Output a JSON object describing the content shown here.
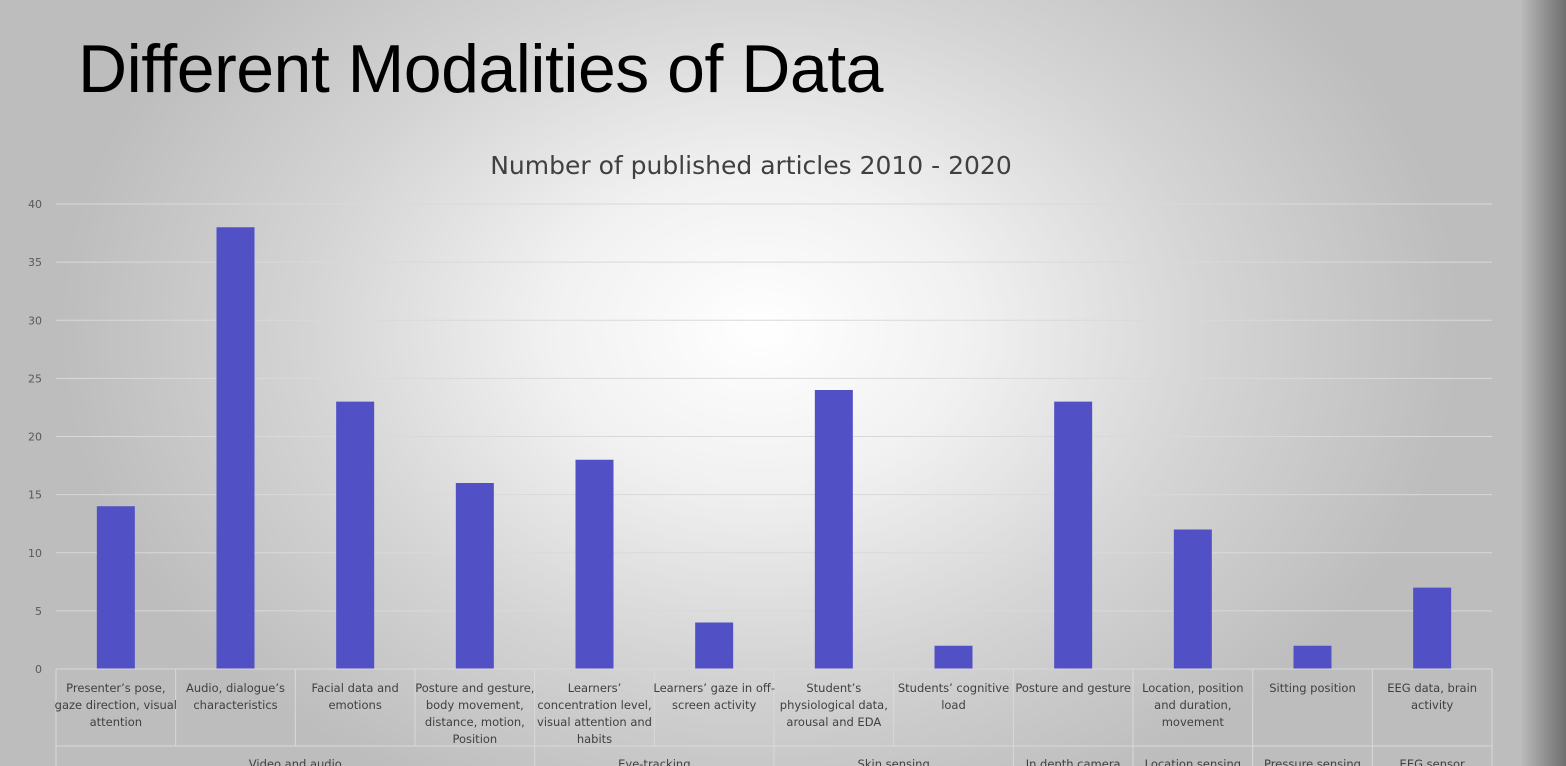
{
  "slide": {
    "title": "Different Modalities of Data"
  },
  "chart_data": {
    "type": "bar",
    "title": "Number of published articles 2010 - 2020",
    "xlabel": "",
    "ylabel": "",
    "ylim": [
      0,
      40
    ],
    "yticks": [
      0,
      5,
      10,
      15,
      20,
      25,
      30,
      35,
      40
    ],
    "grid": true,
    "bar_color": "#5151c5",
    "categories": [
      [
        "Presenter’s pose,",
        "gaze direction, visual",
        "attention"
      ],
      [
        "Audio, dialogue’s",
        "characteristics"
      ],
      [
        "Facial data and",
        "emotions"
      ],
      [
        "Posture and gesture,",
        "body movement,",
        "distance, motion,",
        "Position"
      ],
      [
        "Learners’",
        "concentration level,",
        "visual attention and",
        "habits"
      ],
      [
        "Learners’ gaze in off-",
        "screen activity"
      ],
      [
        "Student’s",
        "physiological data,",
        "arousal and EDA"
      ],
      [
        "Students’ cognitive",
        "load"
      ],
      [
        "Posture and gesture"
      ],
      [
        "Location, position",
        "and duration,",
        "movement"
      ],
      [
        "Sitting position"
      ],
      [
        "EEG data, brain",
        "activity"
      ]
    ],
    "values": [
      14,
      38,
      23,
      16,
      18,
      4,
      24,
      2,
      23,
      12,
      2,
      7
    ],
    "groups": [
      {
        "label": "Video and audio",
        "start": 0,
        "count": 4
      },
      {
        "label": "Eye-tracking",
        "start": 4,
        "count": 2
      },
      {
        "label": "Skin sensing",
        "start": 6,
        "count": 2
      },
      {
        "label": "In depth camera",
        "start": 8,
        "count": 1
      },
      {
        "label": "Location sensing",
        "start": 9,
        "count": 1
      },
      {
        "label": "Pressure sensing",
        "start": 10,
        "count": 1
      },
      {
        "label": "EEG sensor",
        "start": 11,
        "count": 1
      }
    ]
  }
}
